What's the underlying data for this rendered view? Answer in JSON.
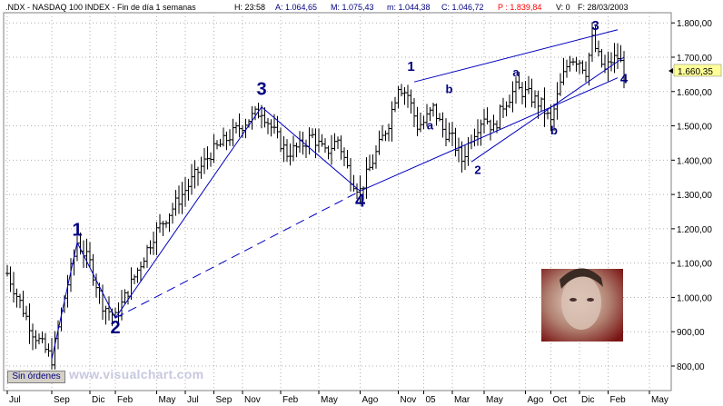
{
  "header": {
    "symbol": ".NDX - NASDAQ 100 INDEX - Fin de día 1 semanas",
    "time_label": "H: 23:58",
    "open_label": "A: 1.064,65",
    "high_label": "M: 1.075,43",
    "low_label": "m: 1.044,38",
    "close_label": "C: 1.046,72",
    "p_label": "P : 1.839,84",
    "v_label": "V: 0",
    "date_label": "F: 28/03/2003"
  },
  "footer": {
    "orders_button": "Sin órdenes",
    "watermark": "www.visualchart.com"
  },
  "colors": {
    "bars": "#000000",
    "wave_lines": "#0000c0",
    "labels": "#000080",
    "p_label": "#ff0000",
    "current_badge_bg": "#ffff99"
  },
  "chart_data": {
    "type": "bar",
    "subtype": "ohlc",
    "ylim": [
      780,
      1820
    ],
    "grid": "dotted",
    "ytick_labels": [
      "800,00",
      "900,00",
      "1.000,00",
      "1.100,00",
      "1.200,00",
      "1.300,00",
      "1.400,00",
      "1.500,00",
      "1.600,00",
      "1.700,00",
      "1.800,00"
    ],
    "yticks": [
      800,
      900,
      1000,
      1100,
      1200,
      1300,
      1400,
      1500,
      1600,
      1700,
      1800
    ],
    "current_value_label": "1.660,35",
    "current_value": 1660.35,
    "xtick_labels": [
      "Jul",
      "Sep",
      "Dic",
      "Feb",
      "May",
      "Jul",
      "Sep",
      "Nov",
      "Feb",
      "May",
      "Ago",
      "Nov",
      "05",
      "Mar",
      "May",
      "Ago",
      "Oct",
      "Dic",
      "Feb",
      "May"
    ],
    "xticks": [
      0,
      14,
      26,
      34,
      47,
      56,
      65,
      74,
      86,
      98,
      111,
      123,
      131,
      140,
      150,
      163,
      171,
      180,
      189,
      202
    ],
    "n_bars": 202,
    "close_path": [
      [
        0,
        1070
      ],
      [
        8,
        900
      ],
      [
        14,
        820
      ],
      [
        18,
        1000
      ],
      [
        22,
        1160
      ],
      [
        26,
        1100
      ],
      [
        30,
        980
      ],
      [
        34,
        940
      ],
      [
        40,
        1060
      ],
      [
        46,
        1180
      ],
      [
        52,
        1260
      ],
      [
        58,
        1340
      ],
      [
        64,
        1420
      ],
      [
        70,
        1470
      ],
      [
        76,
        1520
      ],
      [
        80,
        1545
      ],
      [
        84,
        1480
      ],
      [
        88,
        1420
      ],
      [
        92,
        1440
      ],
      [
        96,
        1470
      ],
      [
        100,
        1420
      ],
      [
        104,
        1460
      ],
      [
        108,
        1350
      ],
      [
        111,
        1310
      ],
      [
        116,
        1420
      ],
      [
        120,
        1510
      ],
      [
        123,
        1620
      ],
      [
        126,
        1590
      ],
      [
        129,
        1500
      ],
      [
        131,
        1510
      ],
      [
        134,
        1550
      ],
      [
        137,
        1490
      ],
      [
        140,
        1460
      ],
      [
        143,
        1400
      ],
      [
        146,
        1470
      ],
      [
        150,
        1530
      ],
      [
        153,
        1490
      ],
      [
        156,
        1560
      ],
      [
        160,
        1610
      ],
      [
        164,
        1590
      ],
      [
        168,
        1560
      ],
      [
        171,
        1510
      ],
      [
        174,
        1620
      ],
      [
        177,
        1700
      ],
      [
        180,
        1690
      ],
      [
        182,
        1660
      ],
      [
        184,
        1750
      ],
      [
        186,
        1700
      ],
      [
        188,
        1660
      ],
      [
        190,
        1690
      ],
      [
        192,
        1700
      ],
      [
        194,
        1665
      ]
    ],
    "wave_labels": [
      {
        "text": "1",
        "x": 22,
        "y": 1180,
        "size": "large"
      },
      {
        "text": "2",
        "x": 34,
        "y": 895,
        "size": "large"
      },
      {
        "text": "3",
        "x": 80,
        "y": 1590,
        "size": "large"
      },
      {
        "text": "4",
        "x": 111,
        "y": 1265,
        "size": "large"
      },
      {
        "text": "1",
        "x": 127,
        "y": 1660,
        "size": "medium"
      },
      {
        "text": "b",
        "x": 139,
        "y": 1595,
        "size": "small"
      },
      {
        "text": "a",
        "x": 133,
        "y": 1490,
        "size": "small"
      },
      {
        "text": "2",
        "x": 148,
        "y": 1360,
        "size": "small"
      },
      {
        "text": "a",
        "x": 160,
        "y": 1645,
        "size": "small"
      },
      {
        "text": "b",
        "x": 172,
        "y": 1475,
        "size": "small"
      },
      {
        "text": "3",
        "x": 185,
        "y": 1780,
        "size": "medium"
      },
      {
        "text": "4",
        "x": 194,
        "y": 1625,
        "size": "medium"
      }
    ],
    "wave_lines": [
      {
        "x": [
          14,
          22,
          34,
          80,
          111
        ],
        "y": [
          820,
          1160,
          940,
          1555,
          1310
        ],
        "dashed": false
      },
      {
        "x": [
          34,
          111
        ],
        "y": [
          940,
          1310
        ],
        "dashed": true
      },
      {
        "x": [
          111,
          192
        ],
        "y": [
          1310,
          1640
        ],
        "dashed": false
      },
      {
        "x": [
          128,
          192
        ],
        "y": [
          1628,
          1780
        ],
        "dashed": false
      },
      {
        "x": [
          146,
          194
        ],
        "y": [
          1395,
          1700
        ],
        "dashed": false
      }
    ]
  }
}
